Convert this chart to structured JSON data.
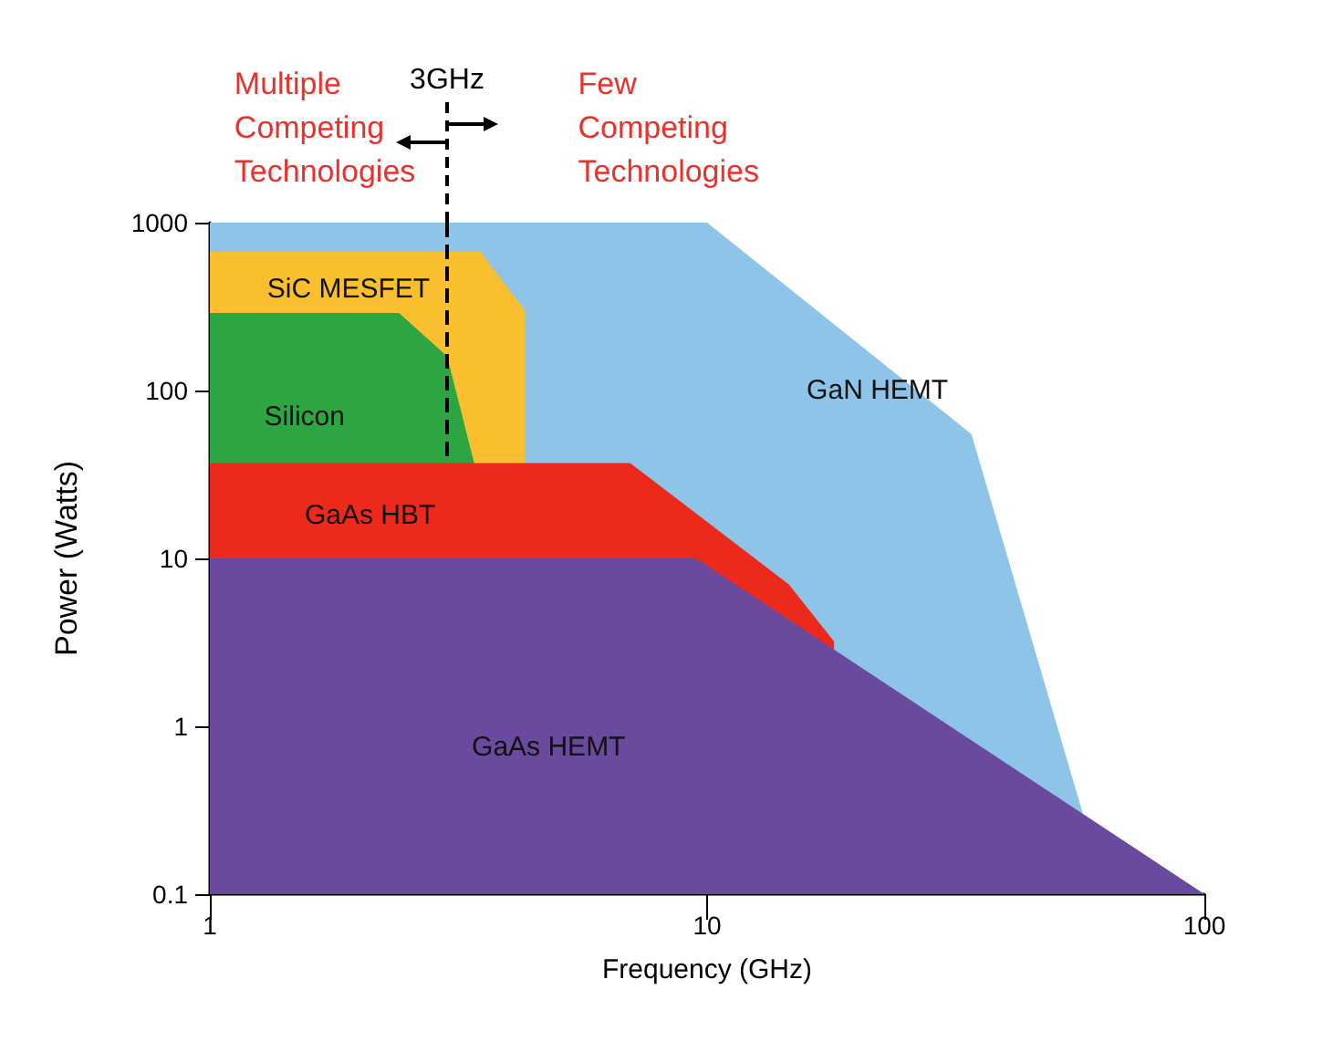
{
  "chart_data": {
    "type": "area",
    "xlabel": "Frequency (GHz)",
    "ylabel": "Power (Watts)",
    "log": "xy",
    "xlim": [
      1,
      100
    ],
    "xticks": [
      1,
      10,
      100
    ],
    "ylim": [
      0.1,
      1000
    ],
    "yticks": [
      0.1,
      1,
      10,
      100,
      1000
    ],
    "grid": false,
    "legend": false,
    "marker": "none",
    "series": [
      {
        "name": "GaN HEMT",
        "color": "#8ec4e8",
        "x": [
          1,
          10,
          34,
          57,
          100
        ],
        "values": [
          1000,
          1000,
          55,
          0.3,
          0.1
        ]
      },
      {
        "name": "SiC MESFET",
        "color": "#f9bf2e",
        "x": [
          1,
          3.5,
          4.3,
          4.3
        ],
        "values": [
          670,
          670,
          300,
          37
        ]
      },
      {
        "name": "Silicon",
        "color": "#2ca542",
        "x": [
          1,
          2.4,
          3,
          3.4
        ],
        "values": [
          290,
          290,
          160,
          37
        ]
      },
      {
        "name": "GaAs HBT",
        "color": "#ec2a1c",
        "x": [
          1,
          7,
          14.6,
          18
        ],
        "values": [
          37,
          37,
          7,
          3.2
        ]
      },
      {
        "name": "GaAs HEMT",
        "color": "#6a4a9e",
        "x": [
          1,
          9.5,
          100
        ],
        "values": [
          10,
          10,
          0.1
        ]
      }
    ],
    "ref_lines": [
      {
        "axis": "x",
        "value": 3,
        "label": "3GHz",
        "color": "#000000",
        "line_style": "dashed"
      }
    ],
    "annotations": [
      "Multiple\nCompeting\nTechnologies",
      "Few\nCompeting\nTechnologies"
    ]
  }
}
